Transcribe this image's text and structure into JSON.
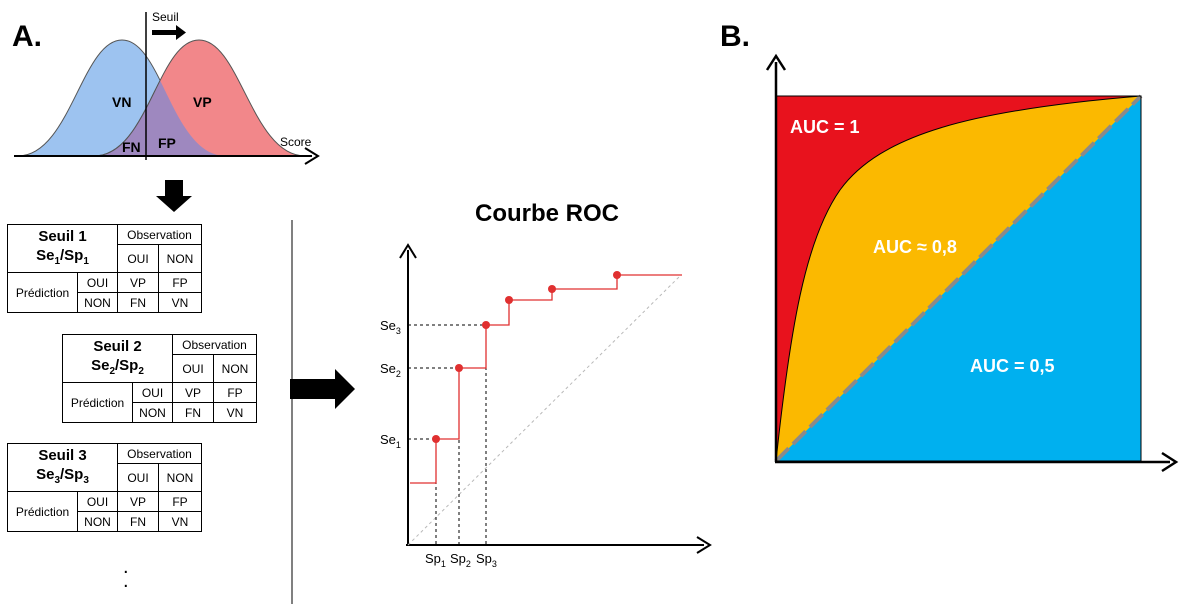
{
  "panel_a": {
    "letter": "A.",
    "threshold_label": "Seuil",
    "score_label": "Score",
    "regions": {
      "vn": "VN",
      "vp": "VP",
      "fn": "FN",
      "fp": "FP"
    },
    "colors": {
      "negative": "#9dc3f0",
      "positive": "#f2878a",
      "overlap": "#9e88bf"
    }
  },
  "tables": [
    {
      "seuil": "Seuil 1",
      "se": "Se",
      "sp": "Sp",
      "idx": "1",
      "observation": "Observation",
      "oui": "OUI",
      "non": "NON",
      "prediction": "Prédiction",
      "vp": "VP",
      "fp": "FP",
      "fn": "FN",
      "vn": "VN"
    },
    {
      "seuil": "Seuil 2",
      "se": "Se",
      "sp": "Sp",
      "idx": "2",
      "observation": "Observation",
      "oui": "OUI",
      "non": "NON",
      "prediction": "Prédiction",
      "vp": "VP",
      "fp": "FP",
      "fn": "FN",
      "vn": "VN"
    },
    {
      "seuil": "Seuil 3",
      "se": "Se",
      "sp": "Sp",
      "idx": "3",
      "observation": "Observation",
      "oui": "OUI",
      "non": "NON",
      "prediction": "Prédiction",
      "vp": "VP",
      "fp": "FP",
      "fn": "FN",
      "vn": "VN"
    }
  ],
  "ellipsis": ".",
  "roc": {
    "title": "Courbe ROC",
    "se_labels": [
      {
        "base": "Se",
        "sub": "3"
      },
      {
        "base": "Se",
        "sub": "2"
      },
      {
        "base": "Se",
        "sub": "1"
      }
    ],
    "sp_labels": [
      {
        "base": "Sp",
        "sub": "1"
      },
      {
        "base": "Sp",
        "sub": "2"
      },
      {
        "base": "Sp",
        "sub": "3"
      }
    ],
    "curve_color": "#e03030"
  },
  "panel_b": {
    "letter": "B.",
    "auc_perfect": "AUC = 1",
    "auc_good": "AUC ≈ 0,8",
    "auc_random": "AUC = 0,5",
    "colors": {
      "perfect": "#e8121d",
      "good": "#fbb900",
      "random": "#00b0ef",
      "diagonal": "#8a8a8a"
    }
  }
}
